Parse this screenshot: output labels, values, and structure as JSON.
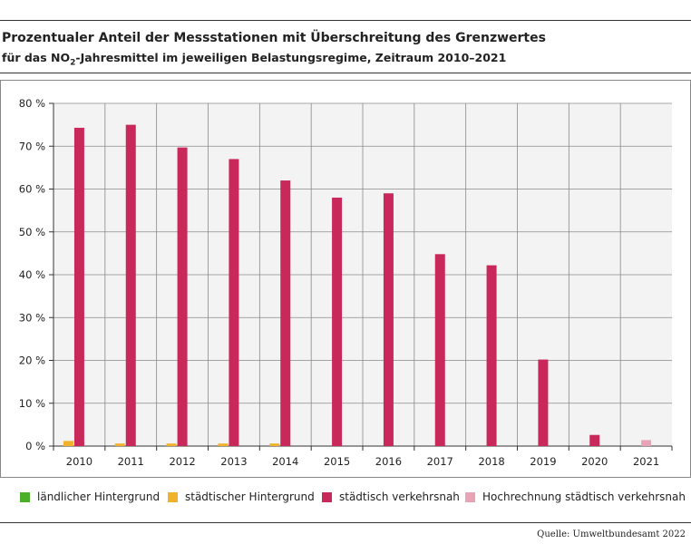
{
  "title": "Prozentualer Anteil der Messstationen mit Überschreitung des Grenzwertes",
  "subtitle": {
    "before": "für das NO",
    "sub": "2",
    "after": "-Jahresmittel im jeweiligen Belastungsregime, Zeitraum 2010–2021"
  },
  "source": "Quelle: Umweltbundesamt 2022",
  "chart_data": {
    "type": "bar",
    "categories": [
      "2010",
      "2011",
      "2012",
      "2013",
      "2014",
      "2015",
      "2016",
      "2017",
      "2018",
      "2019",
      "2020",
      "2021"
    ],
    "series": [
      {
        "name": "ländlicher Hintergrund",
        "color": "#4caf2a",
        "values": [
          0,
          0,
          0,
          0,
          0,
          0,
          0,
          0,
          0,
          0,
          0,
          0
        ]
      },
      {
        "name": "städtischer Hintergrund",
        "color": "#f0b22a",
        "values": [
          1.2,
          0.6,
          0.6,
          0.6,
          0.6,
          0,
          0,
          0,
          0,
          0,
          0,
          0
        ]
      },
      {
        "name": "städtisch verkehrsnah",
        "color": "#c8285a",
        "values": [
          74.3,
          75,
          69.7,
          67,
          62,
          58,
          59,
          44.8,
          42.2,
          20.2,
          2.6,
          null
        ]
      },
      {
        "name": "Hochrechnung städtisch verkehrsnah",
        "color": "#e8a3b7",
        "values": [
          null,
          null,
          null,
          null,
          null,
          null,
          null,
          null,
          null,
          null,
          null,
          1.4
        ]
      }
    ],
    "yticks": [
      "0 %",
      "10 %",
      "20 %",
      "30 %",
      "40 %",
      "50 %",
      "60 %",
      "70 %",
      "80 %"
    ],
    "ylim": [
      0,
      80
    ],
    "grid": true,
    "legend_position": "bottom"
  }
}
